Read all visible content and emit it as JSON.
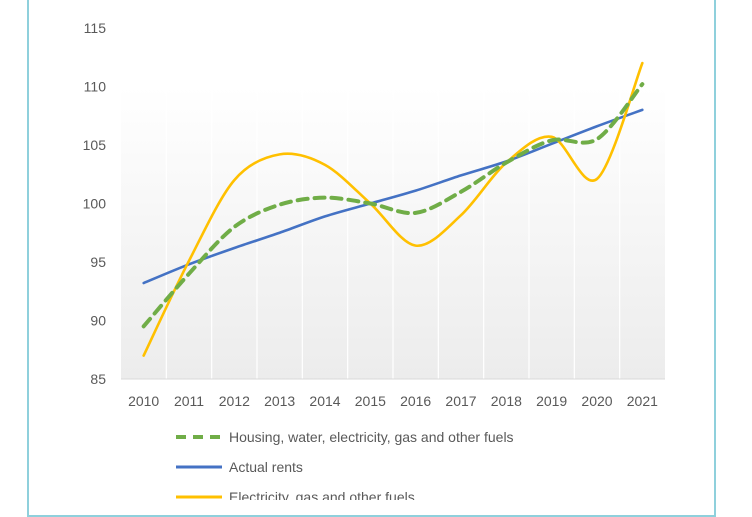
{
  "chart_data": {
    "type": "line",
    "title": "",
    "xlabel": "",
    "ylabel": "",
    "x": [
      "2010",
      "2011",
      "2012",
      "2013",
      "2014",
      "2015",
      "2016",
      "2017",
      "2018",
      "2019",
      "2020",
      "2021"
    ],
    "ylim": [
      85,
      115
    ],
    "yticks": [
      85,
      90,
      95,
      100,
      105,
      110,
      115
    ],
    "grid": true,
    "legend_position": "bottom",
    "series": [
      {
        "name": "Housing, water, electricity, gas and other fuels",
        "color": "#70ad47",
        "style": "dashed",
        "values": [
          89.5,
          94.0,
          98.0,
          99.9,
          100.5,
          100.0,
          99.2,
          101.0,
          103.5,
          105.4,
          105.5,
          110.2
        ]
      },
      {
        "name": "Actual rents",
        "color": "#4472c4",
        "style": "solid",
        "values": [
          93.2,
          94.8,
          96.2,
          97.5,
          98.9,
          100.0,
          101.1,
          102.4,
          103.6,
          105.1,
          106.6,
          108.0
        ]
      },
      {
        "name": "Electricity, gas and other fuels",
        "color": "#ffc000",
        "style": "solid",
        "values": [
          87.0,
          95.1,
          102.0,
          104.2,
          103.3,
          100.0,
          96.4,
          99.0,
          103.5,
          105.7,
          102.1,
          112.0
        ]
      }
    ]
  }
}
